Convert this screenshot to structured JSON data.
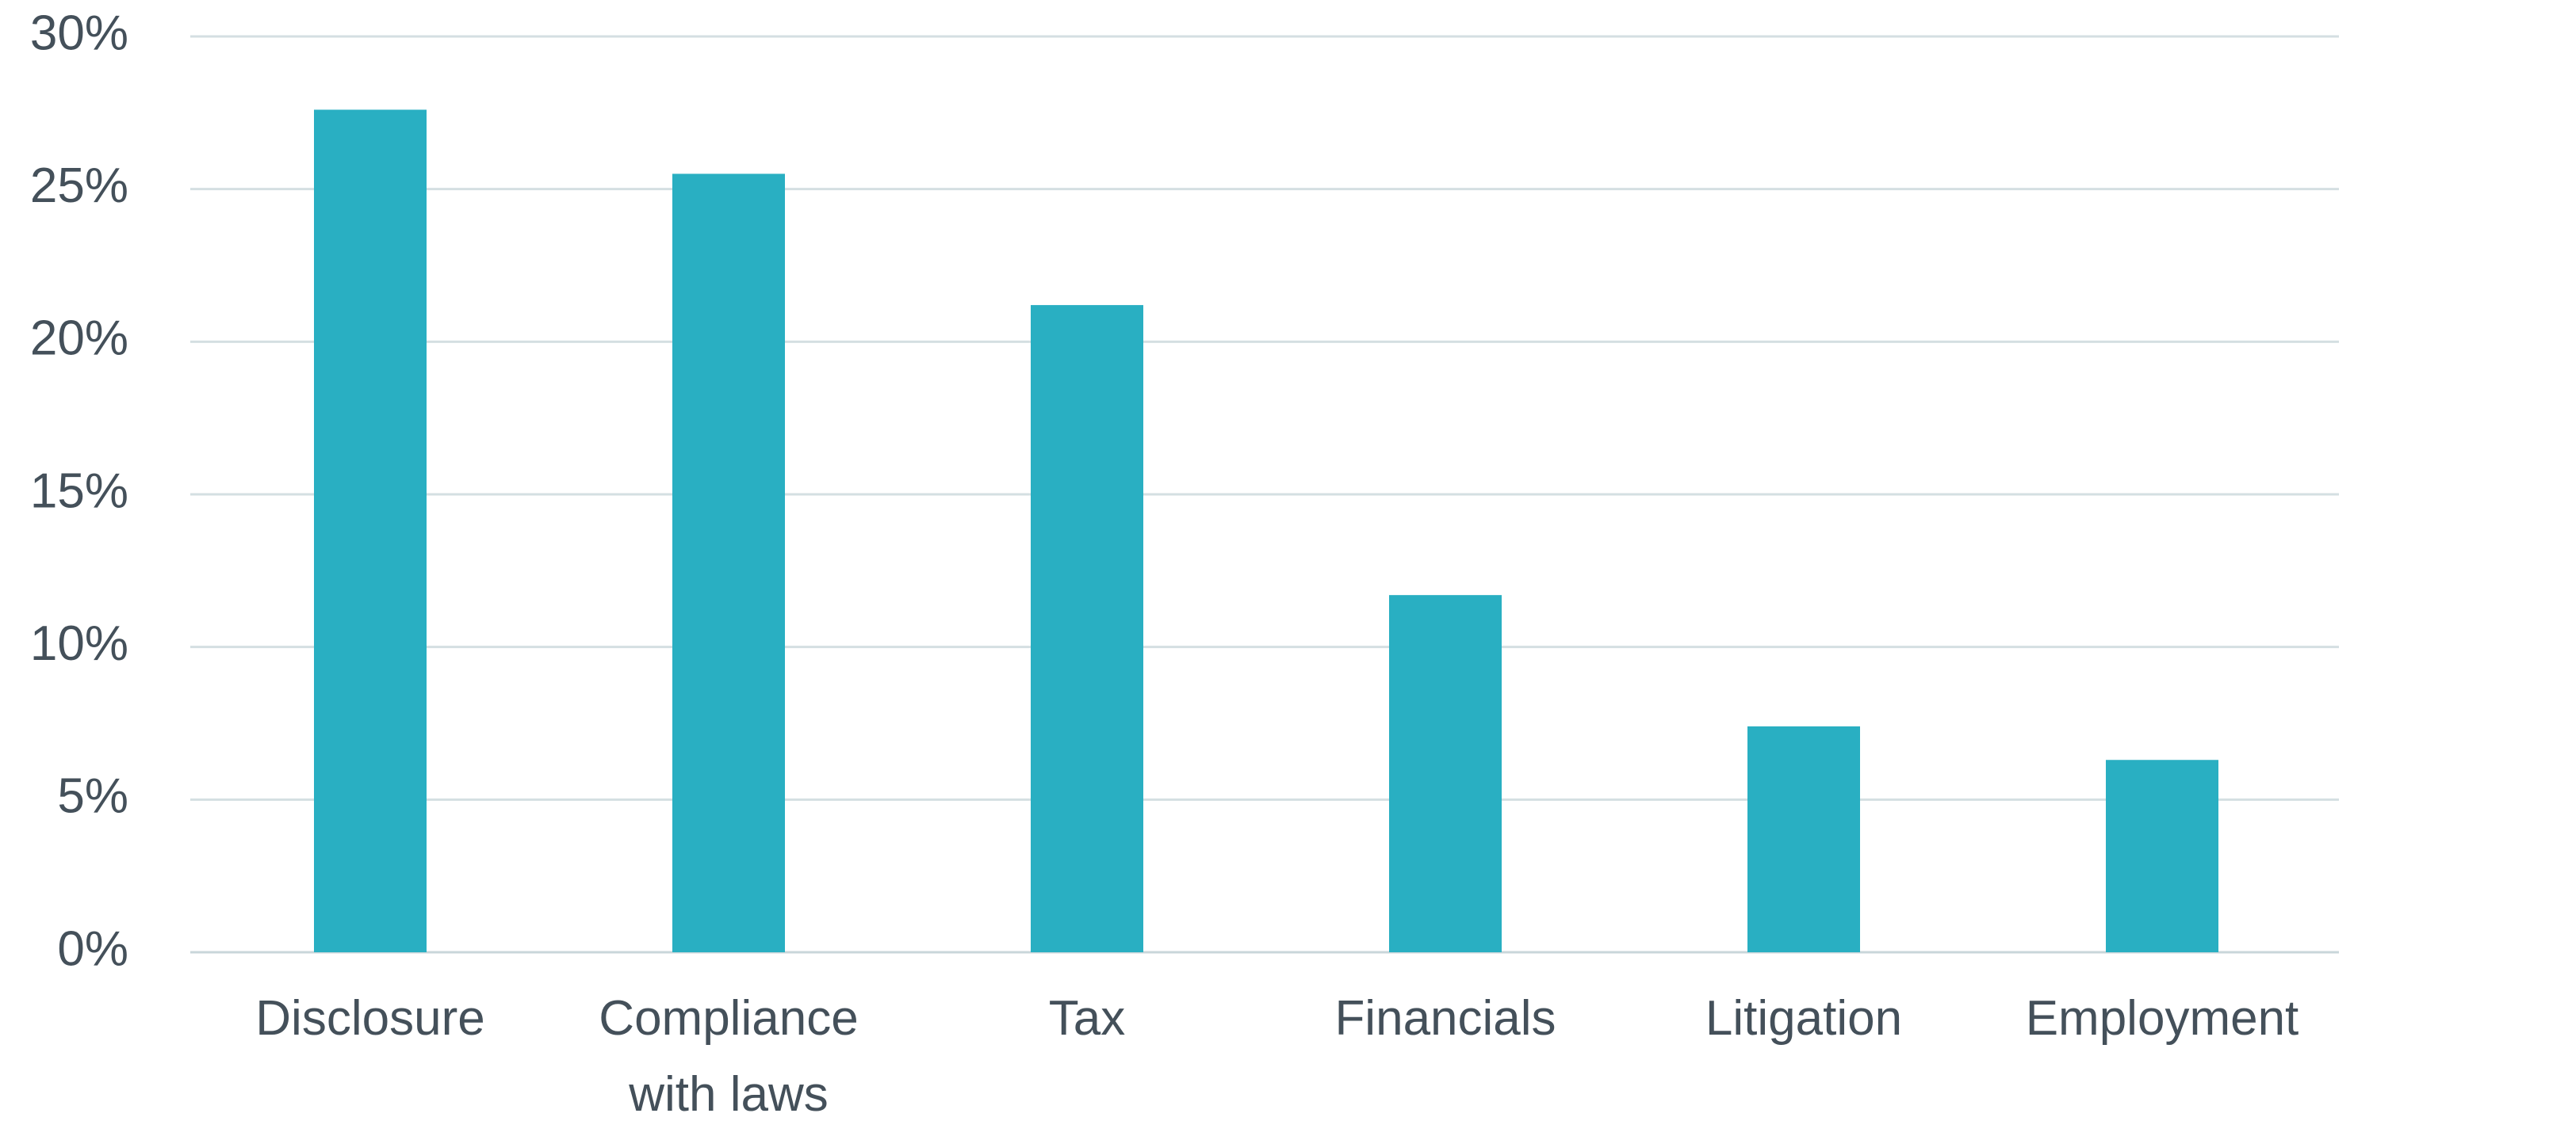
{
  "chart_data": {
    "type": "bar",
    "title": "",
    "xlabel": "",
    "ylabel": "",
    "categories": [
      [
        "Disclosure"
      ],
      [
        "Compliance",
        "with laws"
      ],
      [
        "Tax"
      ],
      [
        "Financials"
      ],
      [
        "Litigation"
      ],
      [
        "Employment"
      ]
    ],
    "values": [
      27.6,
      25.5,
      21.2,
      11.7,
      7.4,
      6.3
    ],
    "ylim": [
      0,
      30
    ],
    "yticks": [
      0,
      5,
      10,
      15,
      20,
      25,
      30
    ],
    "ytick_labels": [
      "0%",
      "5%",
      "10%",
      "15%",
      "20%",
      "25%",
      "30%"
    ],
    "grid": true,
    "legend": "none",
    "bar_color": "#29afc2",
    "grid_color": "#d4dfe2",
    "text_color": "#44505a"
  }
}
